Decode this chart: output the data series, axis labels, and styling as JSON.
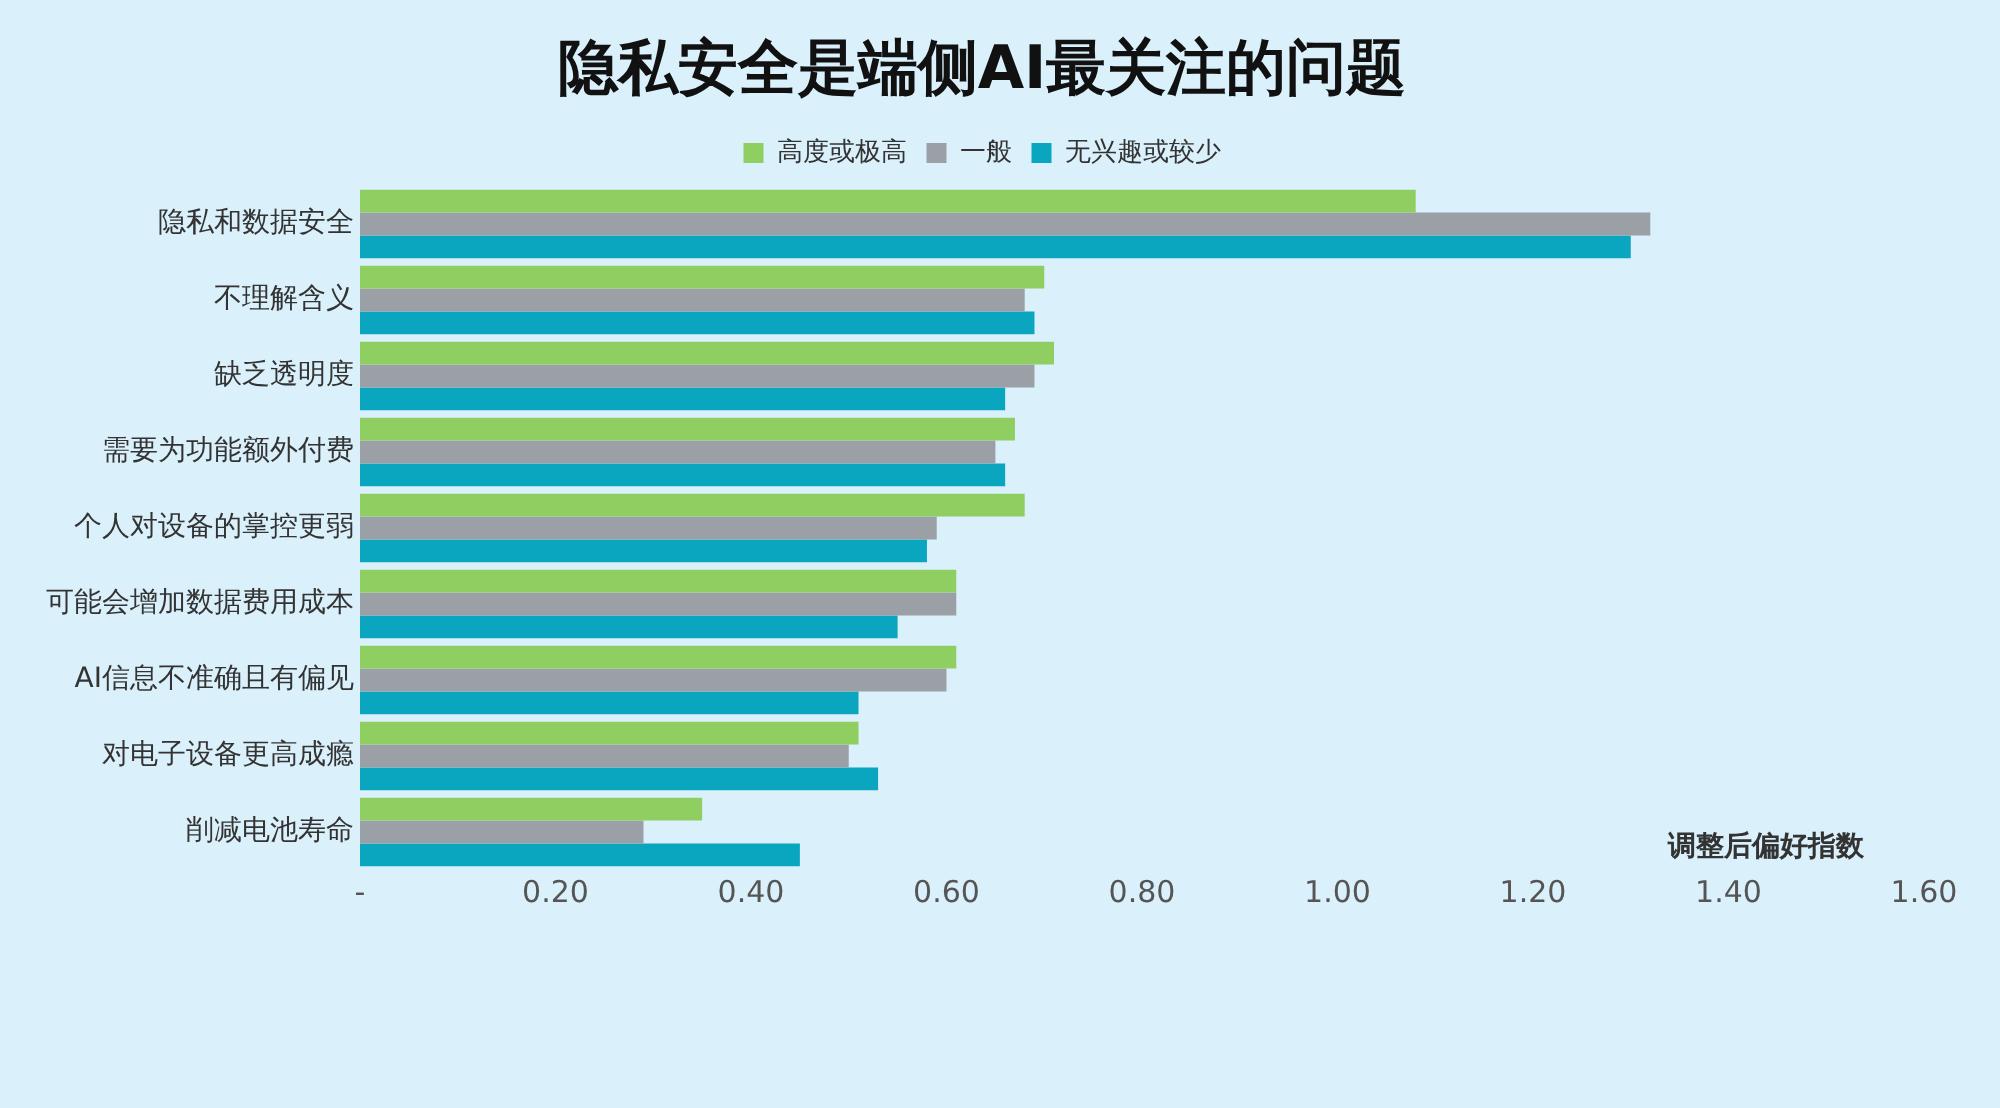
{
  "chart_data": {
    "type": "bar",
    "orientation": "horizontal",
    "title": "隐私安全是端侧AI最关注的问题",
    "xlabel": "调整后偏好指数",
    "categories": [
      "隐私和数据安全",
      "不理解含义",
      "缺乏透明度",
      "需要为功能额外付费",
      "个人对设备的掌控更弱",
      "可能会增加数据费用成本",
      "AI信息不准确且有偏见",
      "对电子设备更高成瘾",
      "削减电池寿命"
    ],
    "series": [
      {
        "name": "高度或极高",
        "color": "#8fcf62",
        "values": [
          1.08,
          0.7,
          0.71,
          0.67,
          0.68,
          0.61,
          0.61,
          0.51,
          0.35
        ]
      },
      {
        "name": "一般",
        "color": "#9aa0a6",
        "values": [
          1.32,
          0.68,
          0.69,
          0.65,
          0.59,
          0.61,
          0.6,
          0.5,
          0.29
        ]
      },
      {
        "name": "无兴趣或较少",
        "color": "#0aa5bf",
        "values": [
          1.3,
          0.69,
          0.66,
          0.66,
          0.58,
          0.55,
          0.51,
          0.53,
          0.45
        ]
      }
    ],
    "xlim": [
      0,
      1.6
    ],
    "xticks": [
      {
        "value": 0,
        "label": "-"
      },
      {
        "value": 0.2,
        "label": "0.20"
      },
      {
        "value": 0.4,
        "label": "0.40"
      },
      {
        "value": 0.6,
        "label": "0.60"
      },
      {
        "value": 0.8,
        "label": "0.80"
      },
      {
        "value": 1.0,
        "label": "1.00"
      },
      {
        "value": 1.2,
        "label": "1.20"
      },
      {
        "value": 1.4,
        "label": "1.40"
      },
      {
        "value": 1.6,
        "label": "1.60"
      }
    ],
    "grid": false,
    "legend": "top"
  }
}
